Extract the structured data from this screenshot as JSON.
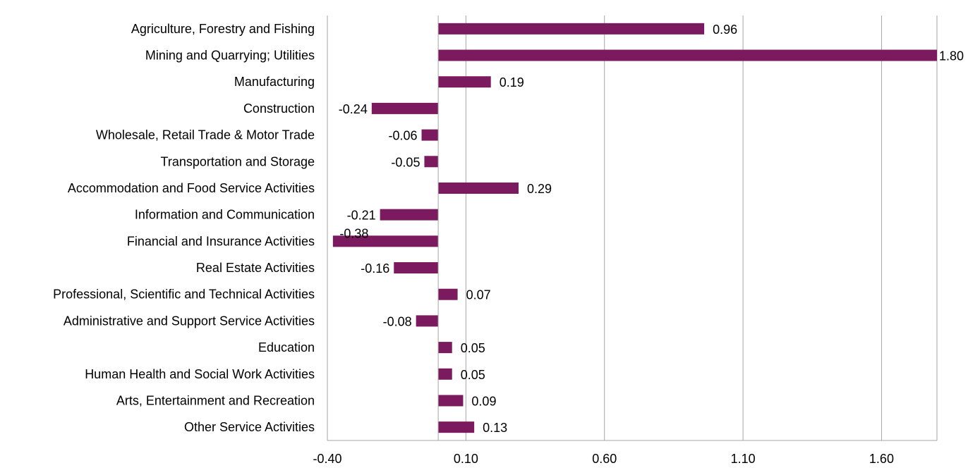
{
  "chart_data": {
    "type": "bar",
    "orientation": "horizontal",
    "categories": [
      "Agriculture, Forestry and Fishing",
      "Mining and Quarrying; Utilities",
      "Manufacturing",
      "Construction",
      "Wholesale, Retail Trade & Motor Trade",
      "Transportation and Storage",
      "Accommodation and Food Service Activities",
      "Information and Communication",
      "Financial and Insurance Activities",
      "Real Estate Activities",
      "Professional, Scientific and Technical Activities",
      "Administrative and Support Service Activities",
      "Education",
      "Human Health and Social Work Activities",
      "Arts, Entertainment and Recreation",
      "Other Service Activities"
    ],
    "values": [
      0.96,
      1.8,
      0.19,
      -0.24,
      -0.06,
      -0.05,
      0.29,
      -0.21,
      -0.38,
      -0.16,
      0.07,
      -0.08,
      0.05,
      0.05,
      0.09,
      0.13
    ],
    "value_labels": [
      "0.96",
      "1.80",
      "0.19",
      "-0.24",
      "-0.06",
      "-0.05",
      "0.29",
      "-0.21",
      "-0.38",
      "-0.16",
      "0.07",
      "-0.08",
      "0.05",
      "0.05",
      "0.09",
      "0.13"
    ],
    "xticks": [
      -0.4,
      0.1,
      0.6,
      1.1,
      1.6
    ],
    "xtick_labels": [
      "-0.40",
      "0.10",
      "0.60",
      "1.10",
      "1.60"
    ],
    "xlim": [
      -0.4,
      1.8
    ],
    "title": "",
    "xlabel": "",
    "ylabel": "",
    "grid": "vertical",
    "legend": "none",
    "bar_color": "#7B1A5E",
    "grid_color": "#A6A6A6"
  }
}
